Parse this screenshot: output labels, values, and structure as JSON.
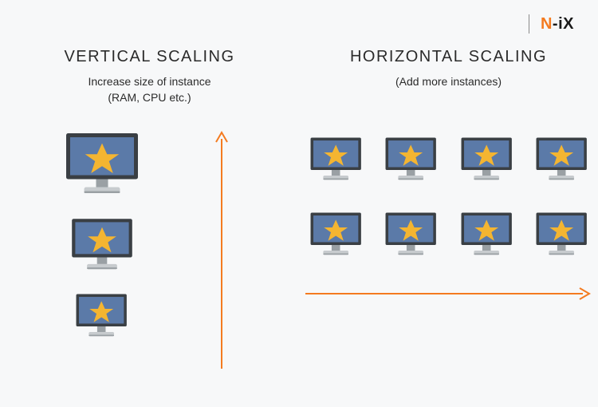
{
  "type": "infographic",
  "background_color": "#f7f8f9",
  "logo": {
    "text_n": "N",
    "text_dash": "-",
    "text_i": "i",
    "text_x": "X",
    "color_n": "#f47b20",
    "color_rest": "#1a1a1a",
    "fontsize": 20
  },
  "columns": {
    "vertical": {
      "title": "VERTICAL SCALING",
      "subtitle_line1": "Increase size of instance",
      "subtitle_line2": "(RAM, CPU etc.)",
      "monitors": [
        {
          "scale": 1.25
        },
        {
          "scale": 1.05
        },
        {
          "scale": 0.88
        }
      ],
      "arrow": {
        "direction": "up",
        "length": 300,
        "color": "#f47b20",
        "stroke_width": 2
      }
    },
    "horizontal": {
      "title": "HORIZONTAL SCALING",
      "subtitle_line1": "(Add more instances)",
      "grid": {
        "rows": 2,
        "cols": 4,
        "monitor_scale": 0.88
      },
      "arrow": {
        "direction": "right",
        "length": 360,
        "color": "#f47b20",
        "stroke_width": 2
      }
    }
  },
  "monitor_style": {
    "screen_fill": "#5b7aa8",
    "bezel_fill": "#3a3f44",
    "stand_fill": "#c7cbce",
    "stand_shadow": "#9aa0a4",
    "star_fill": "#f4b531",
    "base_width": 80,
    "base_height": 68
  },
  "typography": {
    "title_fontsize": 20,
    "title_letterspacing": 1.5,
    "subtitle_fontsize": 14,
    "color": "#2b2b2b"
  }
}
